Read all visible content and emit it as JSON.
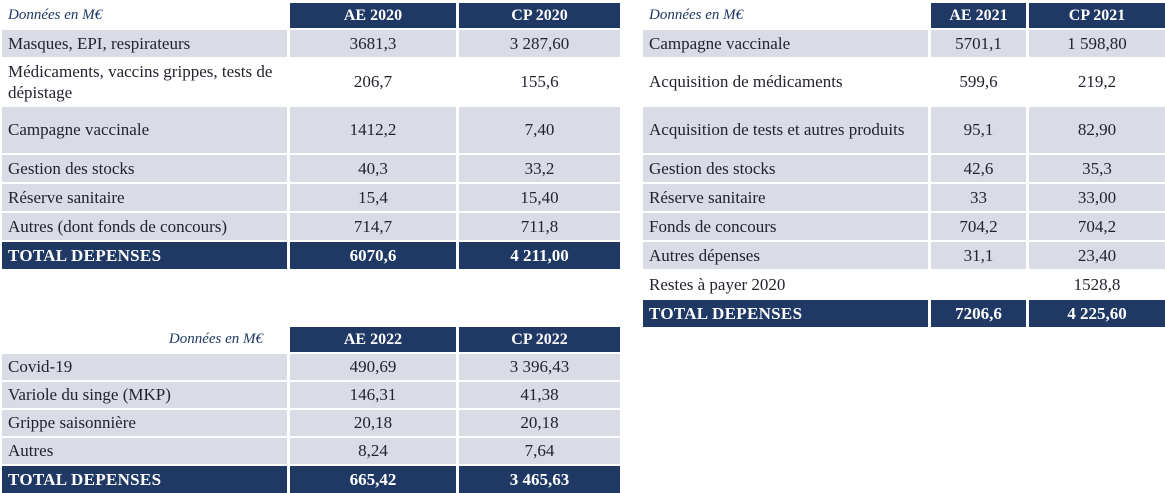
{
  "tables": [
    {
      "unit_label": "Données en M€",
      "columns": [
        "AE 2020",
        "CP 2020"
      ],
      "rows": [
        {
          "label": "Masques, EPI, respirateurs",
          "ae": "3681,3",
          "cp": "3 287,60"
        },
        {
          "label": "Médicaments, vaccins grippes, tests de dépistage",
          "ae": "206,7",
          "cp": "155,6"
        },
        {
          "label": "Campagne vaccinale",
          "ae": "1412,2",
          "cp": "7,40"
        },
        {
          "label": "Gestion des stocks",
          "ae": "40,3",
          "cp": "33,2"
        },
        {
          "label": "Réserve sanitaire",
          "ae": "15,4",
          "cp": "15,40"
        },
        {
          "label": "Autres (dont fonds de concours)",
          "ae": "714,7",
          "cp": "711,8"
        }
      ],
      "total": {
        "label": "TOTAL DEPENSES",
        "ae": "6070,6",
        "cp": "4 211,00"
      }
    },
    {
      "unit_label": "Données en M€",
      "columns": [
        "AE 2021",
        "CP 2021"
      ],
      "rows": [
        {
          "label": "Campagne vaccinale",
          "ae": "5701,1",
          "cp": "1 598,80"
        },
        {
          "label": "Acquisition de médicaments",
          "ae": "599,6",
          "cp": "219,2"
        },
        {
          "label": "Acquisition de tests et autres produits",
          "ae": "95,1",
          "cp": "82,90"
        },
        {
          "label": "Gestion des stocks",
          "ae": "42,6",
          "cp": "35,3"
        },
        {
          "label": "Réserve sanitaire",
          "ae": "33",
          "cp": "33,00"
        },
        {
          "label": "Fonds de concours",
          "ae": "704,2",
          "cp": "704,2"
        },
        {
          "label": "Autres dépenses",
          "ae": "31,1",
          "cp": "23,40"
        },
        {
          "label": "Restes à payer 2020",
          "ae": "",
          "cp": "1528,8"
        }
      ],
      "total": {
        "label": "TOTAL DEPENSES",
        "ae": "7206,6",
        "cp": "4 225,60"
      }
    },
    {
      "unit_label": "Données en M€",
      "columns": [
        "AE 2022",
        "CP 2022"
      ],
      "rows": [
        {
          "label": "Covid-19",
          "ae": "490,69",
          "cp": "3 396,43"
        },
        {
          "label": "Variole du singe (MKP)",
          "ae": "146,31",
          "cp": "41,38"
        },
        {
          "label": "Grippe saisonnière",
          "ae": "20,18",
          "cp": "20,18"
        },
        {
          "label": "Autres",
          "ae": "8,24",
          "cp": "7,64"
        }
      ],
      "total": {
        "label": "TOTAL DEPENSES",
        "ae": "665,42",
        "cp": "3 465,63"
      }
    }
  ],
  "colors": {
    "header_navy": "#1F3864",
    "row_shade": "#D9DCE4",
    "header_text": "#FFFFFF"
  }
}
